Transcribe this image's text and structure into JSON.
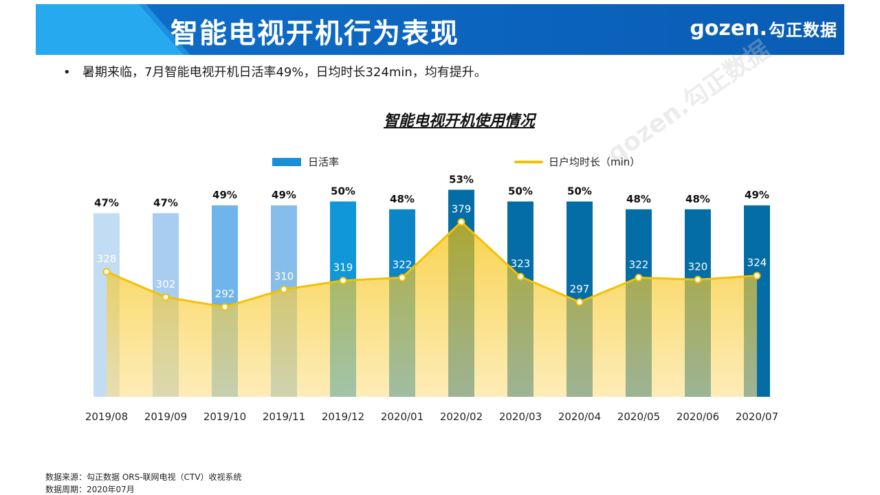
{
  "header": {
    "title": "智能电视开机行为表现",
    "logo_text": "ɡozen.",
    "logo_cn": "勾正数据"
  },
  "bullet": "暑期来临，7月智能电视开机日活率49%，日均时长324min，均有提升。",
  "watermark": "ɡozen.勾正数据",
  "colors": {
    "header_bg": "#0b63bd",
    "accent": "#27a9ef",
    "line": "#f5c000",
    "bar_colors": [
      "#c2dcf3",
      "#a9cdf0",
      "#6fb4ea",
      "#87bdeb",
      "#0f97d9",
      "#0b85c6",
      "#056da5",
      "#056da5",
      "#056da5",
      "#056da5",
      "#056da5",
      "#056da5"
    ]
  },
  "chart_data": {
    "type": "bar",
    "title": "智能电视开机使用情况",
    "categories": [
      "2019/08",
      "2019/09",
      "2019/10",
      "2019/11",
      "2019/12",
      "2020/01",
      "2020/02",
      "2020/03",
      "2020/04",
      "2020/05",
      "2020/06",
      "2020/07"
    ],
    "series": [
      {
        "name": "日活率",
        "kind": "bar",
        "values": [
          47,
          47,
          49,
          49,
          50,
          48,
          53,
          50,
          50,
          48,
          48,
          49
        ],
        "labels": [
          "47%",
          "47%",
          "49%",
          "49%",
          "50%",
          "48%",
          "53%",
          "50%",
          "50%",
          "48%",
          "48%",
          "49%"
        ]
      },
      {
        "name": "日户均时长（min）",
        "kind": "area-line",
        "values": [
          328,
          302,
          292,
          310,
          319,
          322,
          379,
          323,
          297,
          322,
          320,
          324
        ]
      }
    ],
    "bar_ylim": [
      0,
      55
    ],
    "line_ylim": [
      200,
      420
    ]
  },
  "footer": {
    "source": "数据来源：勾正数据 ORS-联网电视（CTV）收视系统",
    "period": "数据周期：2020年07月"
  }
}
